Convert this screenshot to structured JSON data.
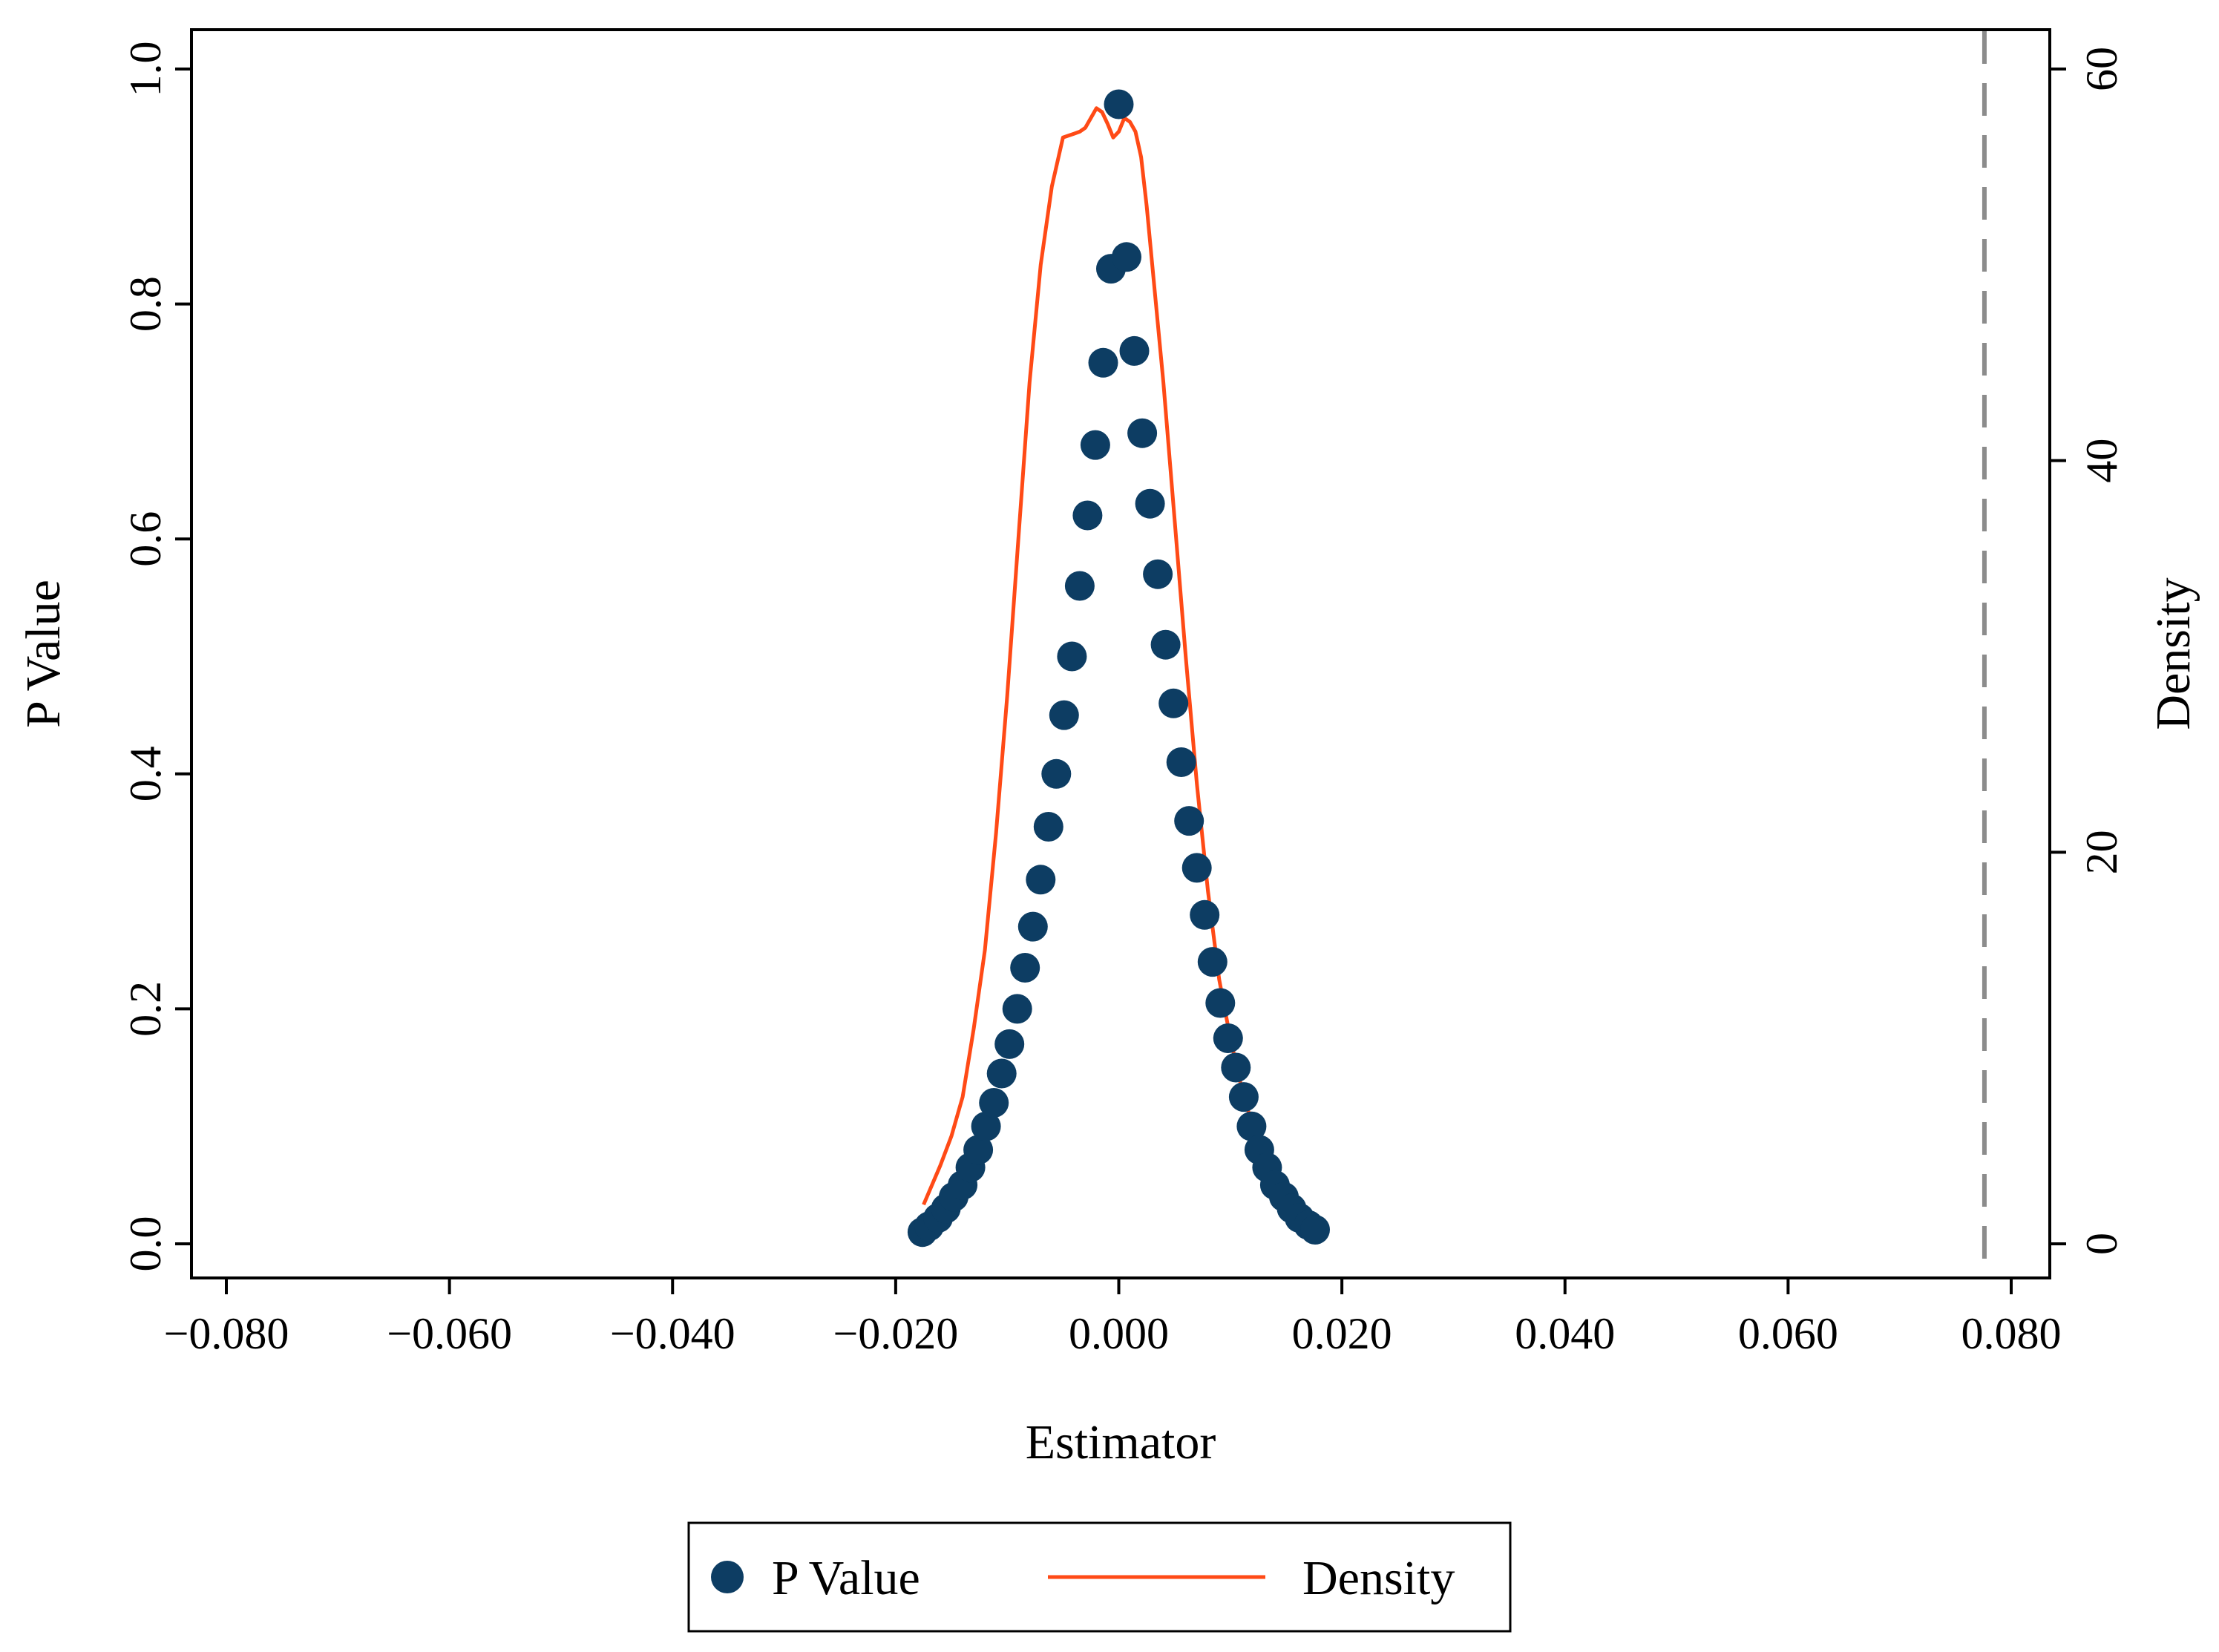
{
  "chart_data": {
    "type": "scatter",
    "xlabel": "Estimator",
    "ylabel_left": "P Value",
    "ylabel_right": "Density",
    "xlim": [
      -0.08,
      0.08
    ],
    "ylim_left": [
      0.0,
      1.0
    ],
    "ylim_right": [
      0,
      60
    ],
    "x_ticks": [
      -0.08,
      -0.06,
      -0.04,
      -0.02,
      0.0,
      0.02,
      0.04,
      0.06,
      0.08
    ],
    "x_tick_labels": [
      "−0.080",
      "−0.060",
      "−0.040",
      "−0.020",
      "0.000",
      "0.020",
      "0.040",
      "0.060",
      "0.080"
    ],
    "y_left_ticks": [
      0.0,
      0.2,
      0.4,
      0.6,
      0.8,
      1.0
    ],
    "y_left_tick_labels": [
      "0.0",
      "0.2",
      "0.4",
      "0.6",
      "0.8",
      "1.0"
    ],
    "y_right_ticks": [
      0,
      20,
      40,
      60
    ],
    "y_right_tick_labels": [
      "0",
      "20",
      "40",
      "60"
    ],
    "vline": {
      "x": 0.0776,
      "style": "dashed",
      "color": "#8c8c8c"
    },
    "grid": false,
    "legend": {
      "position": "bottom-center"
    },
    "series": [
      {
        "name": "P Value",
        "kind": "scatter",
        "axis": "left",
        "color": "#0d3d63",
        "x": [
          -0.0176,
          -0.017,
          -0.0162,
          -0.0155,
          -0.0148,
          -0.014,
          -0.0133,
          -0.0126,
          -0.0119,
          -0.0112,
          -0.0105,
          -0.0098,
          -0.0091,
          -0.0084,
          -0.0077,
          -0.007,
          -0.0063,
          -0.0056,
          -0.0049,
          -0.0042,
          -0.0035,
          -0.0028,
          -0.0021,
          -0.0014,
          -0.0007,
          0.0,
          0.0007,
          0.0014,
          0.0021,
          0.0028,
          0.0035,
          0.0042,
          0.0049,
          0.0056,
          0.0063,
          0.007,
          0.0077,
          0.0084,
          0.0091,
          0.0098,
          0.0105,
          0.0112,
          0.0119,
          0.0126,
          0.0133,
          0.014,
          0.0148,
          0.0155,
          0.0162,
          0.017,
          0.0176
        ],
        "y": [
          0.01,
          0.015,
          0.022,
          0.03,
          0.04,
          0.05,
          0.065,
          0.08,
          0.1,
          0.12,
          0.145,
          0.17,
          0.2,
          0.235,
          0.27,
          0.31,
          0.355,
          0.4,
          0.45,
          0.5,
          0.56,
          0.62,
          0.68,
          0.75,
          0.83,
          0.97,
          0.84,
          0.76,
          0.69,
          0.63,
          0.57,
          0.51,
          0.46,
          0.41,
          0.36,
          0.32,
          0.28,
          0.24,
          0.205,
          0.175,
          0.15,
          0.125,
          0.1,
          0.08,
          0.065,
          0.05,
          0.04,
          0.03,
          0.022,
          0.016,
          0.012
        ]
      },
      {
        "name": "Density",
        "kind": "line",
        "axis": "right",
        "color": "#ff4a16",
        "x": [
          -0.0175,
          -0.016,
          -0.015,
          -0.014,
          -0.013,
          -0.012,
          -0.011,
          -0.01,
          -0.009,
          -0.008,
          -0.007,
          -0.006,
          -0.005,
          -0.004,
          -0.0035,
          -0.003,
          -0.0025,
          -0.002,
          -0.0015,
          -0.001,
          -0.0005,
          0.0,
          0.0005,
          0.001,
          0.0015,
          0.002,
          0.0025,
          0.003,
          0.0035,
          0.004,
          0.005,
          0.006,
          0.007,
          0.008,
          0.009,
          0.01,
          0.011,
          0.012,
          0.013,
          0.014,
          0.015,
          0.016,
          0.0175
        ],
        "y": [
          2.0,
          4.0,
          5.5,
          7.5,
          11.0,
          15.0,
          21.0,
          28.0,
          36.0,
          44.0,
          50.0,
          54.0,
          56.5,
          56.7,
          56.8,
          57.0,
          57.5,
          58.0,
          57.8,
          57.2,
          56.5,
          56.8,
          57.5,
          57.3,
          56.8,
          55.5,
          53.0,
          50.0,
          47.0,
          44.0,
          37.0,
          30.0,
          23.5,
          18.0,
          13.5,
          10.5,
          8.0,
          6.0,
          4.5,
          3.5,
          2.7,
          2.0,
          1.5
        ]
      }
    ]
  }
}
